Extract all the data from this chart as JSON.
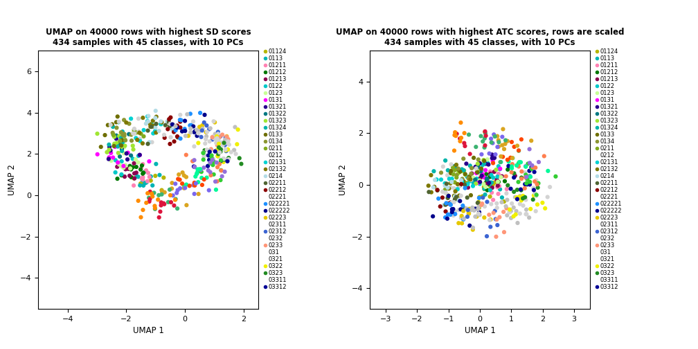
{
  "title1": "UMAP on 40000 rows with highest SD scores\n434 samples with 45 classes, with 10 PCs",
  "title2": "UMAP on 40000 rows with highest ATC scores, rows are scaled\n434 samples with 45 classes, with 10 PCs",
  "xlabel": "UMAP 1",
  "ylabel": "UMAP 2",
  "legend_classes": [
    "01124",
    "0113",
    "01211",
    "01212",
    "01213",
    "0122",
    "0123",
    "0131",
    "01321",
    "01322",
    "01323",
    "01324",
    "0133",
    "0134",
    "0211",
    "0212",
    "02131",
    "02132",
    "0214",
    "02211",
    "02212",
    "02221",
    "022221",
    "022222",
    "02223",
    "02311",
    "02312",
    "0232",
    "0233",
    "031",
    "0321",
    "0322",
    "0323",
    "03311",
    "03312"
  ],
  "legend_colors": [
    "#b5b500",
    "#00b4b4",
    "#ff82b4",
    "#007800",
    "#8b0050",
    "#00c8c8",
    "#c8ff96",
    "#ff00ff",
    "#28008c",
    "#007882",
    "#a0e632",
    "#00b4aa",
    "#6e6e00",
    "#8c9632",
    "#82aa1e",
    "#d3d3d3",
    "#00d2d2",
    "#7d7800",
    "#b4dce6",
    "#506432",
    "#8b0000",
    "#d3d3d3",
    "#1e90ff",
    "#00008b",
    "#e6c800",
    "#c0c0c0",
    "#3c64d2",
    "#d3d3d3",
    "#ff9678",
    "#c0c0c0",
    "#d3d3d3",
    "#f0f000",
    "#228b22",
    "#d3d3d3",
    "#000096"
  ],
  "no_dot_classes": [
    "0212",
    "02221",
    "02311",
    "0232",
    "031",
    "0321",
    "03311"
  ],
  "xlim1": [
    -5.0,
    2.5
  ],
  "ylim1": [
    -5.5,
    7.0
  ],
  "xticks1": [
    -4,
    -2,
    0,
    2
  ],
  "yticks1": [
    -4,
    -2,
    0,
    2,
    4,
    6
  ],
  "xlim2": [
    -3.5,
    3.5
  ],
  "ylim2": [
    -4.8,
    5.2
  ],
  "xticks2": [
    -3,
    -2,
    -1,
    0,
    1,
    2,
    3
  ],
  "yticks2": [
    -4,
    -2,
    0,
    2,
    4
  ],
  "point_size": 20,
  "bg_color": "#ffffff",
  "title_fontsize": 8.5,
  "axis_fontsize": 8.5,
  "tick_fontsize": 8,
  "legend_fontsize": 6.0
}
